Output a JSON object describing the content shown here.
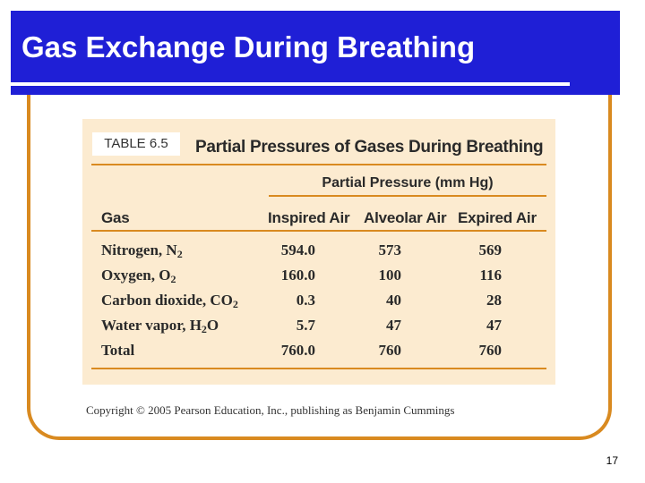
{
  "slide": {
    "title": "Gas Exchange During Breathing",
    "page_number": "17",
    "colors": {
      "title_bar": "#1f1fd6",
      "frame": "#d98a20",
      "table_bg": "#fcebd0",
      "rule": "#d98a20"
    }
  },
  "table": {
    "label": "TABLE 6.5",
    "title": "Partial Pressures of Gases During Breathing",
    "group_header": "Partial Pressure (mm Hg)",
    "columns": [
      "Gas",
      "Inspired Air",
      "Alveolar Air",
      "Expired Air"
    ],
    "rows": [
      {
        "gas": "Nitrogen, N",
        "sub": "2",
        "suffix": "",
        "inspired": "594.0",
        "alveolar": "573",
        "expired": "569"
      },
      {
        "gas": "Oxygen, O",
        "sub": "2",
        "suffix": "",
        "inspired": "160.0",
        "alveolar": "100",
        "expired": "116"
      },
      {
        "gas": "Carbon dioxide, CO",
        "sub": "2",
        "suffix": "",
        "inspired": "0.3",
        "alveolar": "40",
        "expired": "28"
      },
      {
        "gas": "Water vapor, H",
        "sub": "2",
        "suffix": "O",
        "inspired": "5.7",
        "alveolar": "47",
        "expired": "47"
      },
      {
        "gas": "Total",
        "sub": "",
        "suffix": "",
        "inspired": "760.0",
        "alveolar": "760",
        "expired": "760"
      }
    ]
  },
  "copyright": "Copyright © 2005 Pearson Education, Inc., publishing as Benjamin Cummings"
}
